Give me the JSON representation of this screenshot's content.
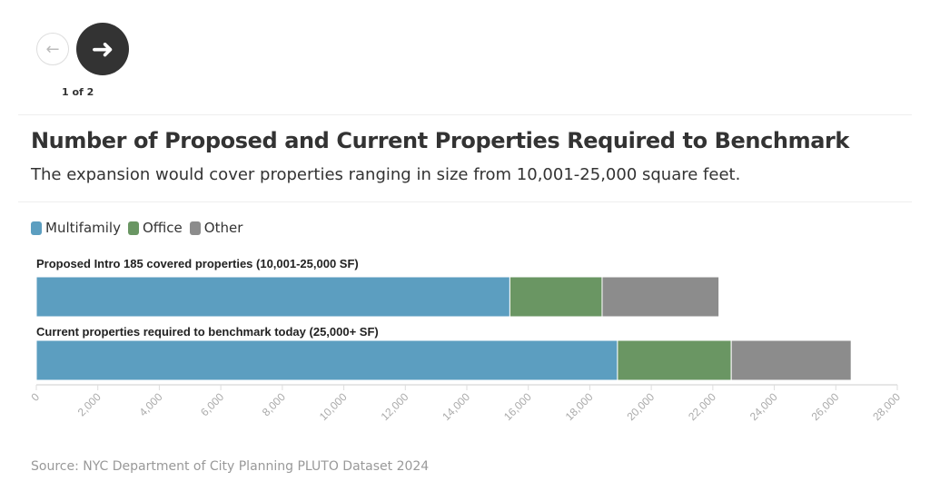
{
  "nav": {
    "prev_icon": "arrow-left-icon",
    "next_icon": "arrow-right-icon",
    "pager": "1 of 2"
  },
  "title": "Number of Proposed and Current Properties Required to Benchmark",
  "subtitle": "The expansion would cover properties ranging in size from 10,001-25,000 square feet.",
  "source": "Source: NYC Department of City Planning PLUTO Dataset 2024",
  "chart_data": {
    "type": "bar",
    "orientation": "horizontal",
    "stacked": true,
    "categories": [
      "Proposed Intro 185 covered properties (10,001-25,000 SF)",
      "Current properties required to benchmark today (25,000+ SF)"
    ],
    "series": [
      {
        "name": "Multifamily",
        "color": "#5c9ec0",
        "values": [
          15400,
          18900
        ]
      },
      {
        "name": "Office",
        "color": "#6a9663",
        "values": [
          3000,
          3700
        ]
      },
      {
        "name": "Other",
        "color": "#8c8c8c",
        "values": [
          3800,
          3900
        ]
      }
    ],
    "xlim": [
      0,
      28000
    ],
    "ticks": [
      "0",
      "2,000",
      "4,000",
      "6,000",
      "8,000",
      "10,000",
      "12,000",
      "14,000",
      "16,000",
      "18,000",
      "20,000",
      "22,000",
      "24,000",
      "26,000",
      "28,000"
    ],
    "legend_position": "top-left",
    "grid": false
  }
}
